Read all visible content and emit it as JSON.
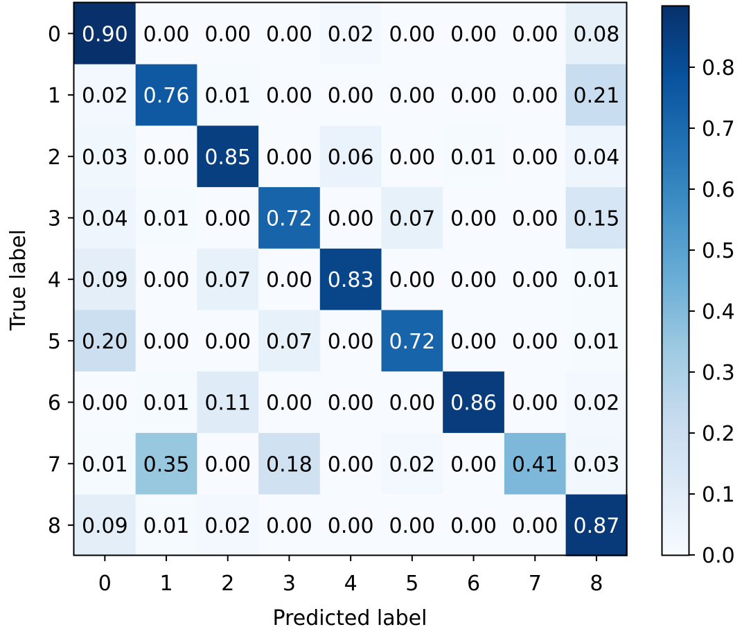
{
  "chart_data": {
    "type": "heatmap",
    "title": "",
    "xlabel": "Predicted label",
    "ylabel": "True label",
    "x_categories": [
      "0",
      "1",
      "2",
      "3",
      "4",
      "5",
      "6",
      "7",
      "8"
    ],
    "y_categories": [
      "0",
      "1",
      "2",
      "3",
      "4",
      "5",
      "6",
      "7",
      "8"
    ],
    "values": [
      [
        0.9,
        0.0,
        0.0,
        0.0,
        0.02,
        0.0,
        0.0,
        0.0,
        0.08
      ],
      [
        0.02,
        0.76,
        0.01,
        0.0,
        0.0,
        0.0,
        0.0,
        0.0,
        0.21
      ],
      [
        0.03,
        0.0,
        0.85,
        0.0,
        0.06,
        0.0,
        0.01,
        0.0,
        0.04
      ],
      [
        0.04,
        0.01,
        0.0,
        0.72,
        0.0,
        0.07,
        0.0,
        0.0,
        0.15
      ],
      [
        0.09,
        0.0,
        0.07,
        0.0,
        0.83,
        0.0,
        0.0,
        0.0,
        0.01
      ],
      [
        0.2,
        0.0,
        0.0,
        0.07,
        0.0,
        0.72,
        0.0,
        0.0,
        0.01
      ],
      [
        0.0,
        0.01,
        0.11,
        0.0,
        0.0,
        0.0,
        0.86,
        0.0,
        0.02
      ],
      [
        0.01,
        0.35,
        0.0,
        0.18,
        0.0,
        0.02,
        0.0,
        0.41,
        0.03
      ],
      [
        0.09,
        0.01,
        0.02,
        0.0,
        0.0,
        0.0,
        0.0,
        0.0,
        0.87
      ]
    ],
    "cell_labels": [
      [
        "0.90",
        "0.00",
        "0.00",
        "0.00",
        "0.02",
        "0.00",
        "0.00",
        "0.00",
        "0.08"
      ],
      [
        "0.02",
        "0.76",
        "0.01",
        "0.00",
        "0.00",
        "0.00",
        "0.00",
        "0.00",
        "0.21"
      ],
      [
        "0.03",
        "0.00",
        "0.85",
        "0.00",
        "0.06",
        "0.00",
        "0.01",
        "0.00",
        "0.04"
      ],
      [
        "0.04",
        "0.01",
        "0.00",
        "0.72",
        "0.00",
        "0.07",
        "0.00",
        "0.00",
        "0.15"
      ],
      [
        "0.09",
        "0.00",
        "0.07",
        "0.00",
        "0.83",
        "0.00",
        "0.00",
        "0.00",
        "0.01"
      ],
      [
        "0.20",
        "0.00",
        "0.00",
        "0.07",
        "0.00",
        "0.72",
        "0.00",
        "0.00",
        "0.01"
      ],
      [
        "0.00",
        "0.01",
        "0.11",
        "0.00",
        "0.00",
        "0.00",
        "0.86",
        "0.00",
        "0.02"
      ],
      [
        "0.01",
        "0.35",
        "0.00",
        "0.18",
        "0.00",
        "0.02",
        "0.00",
        "0.41",
        "0.03"
      ],
      [
        "0.09",
        "0.01",
        "0.02",
        "0.00",
        "0.00",
        "0.00",
        "0.00",
        "0.00",
        "0.87"
      ]
    ],
    "colormap": "Blues",
    "color_range": [
      0.0,
      0.9
    ],
    "colorbar_ticks": [
      "0.0",
      "0.1",
      "0.2",
      "0.3",
      "0.4",
      "0.5",
      "0.6",
      "0.7",
      "0.8"
    ],
    "text_color_dark": "#000000",
    "text_color_light": "#ffffff",
    "grid": false,
    "legend": "colorbar-right"
  }
}
